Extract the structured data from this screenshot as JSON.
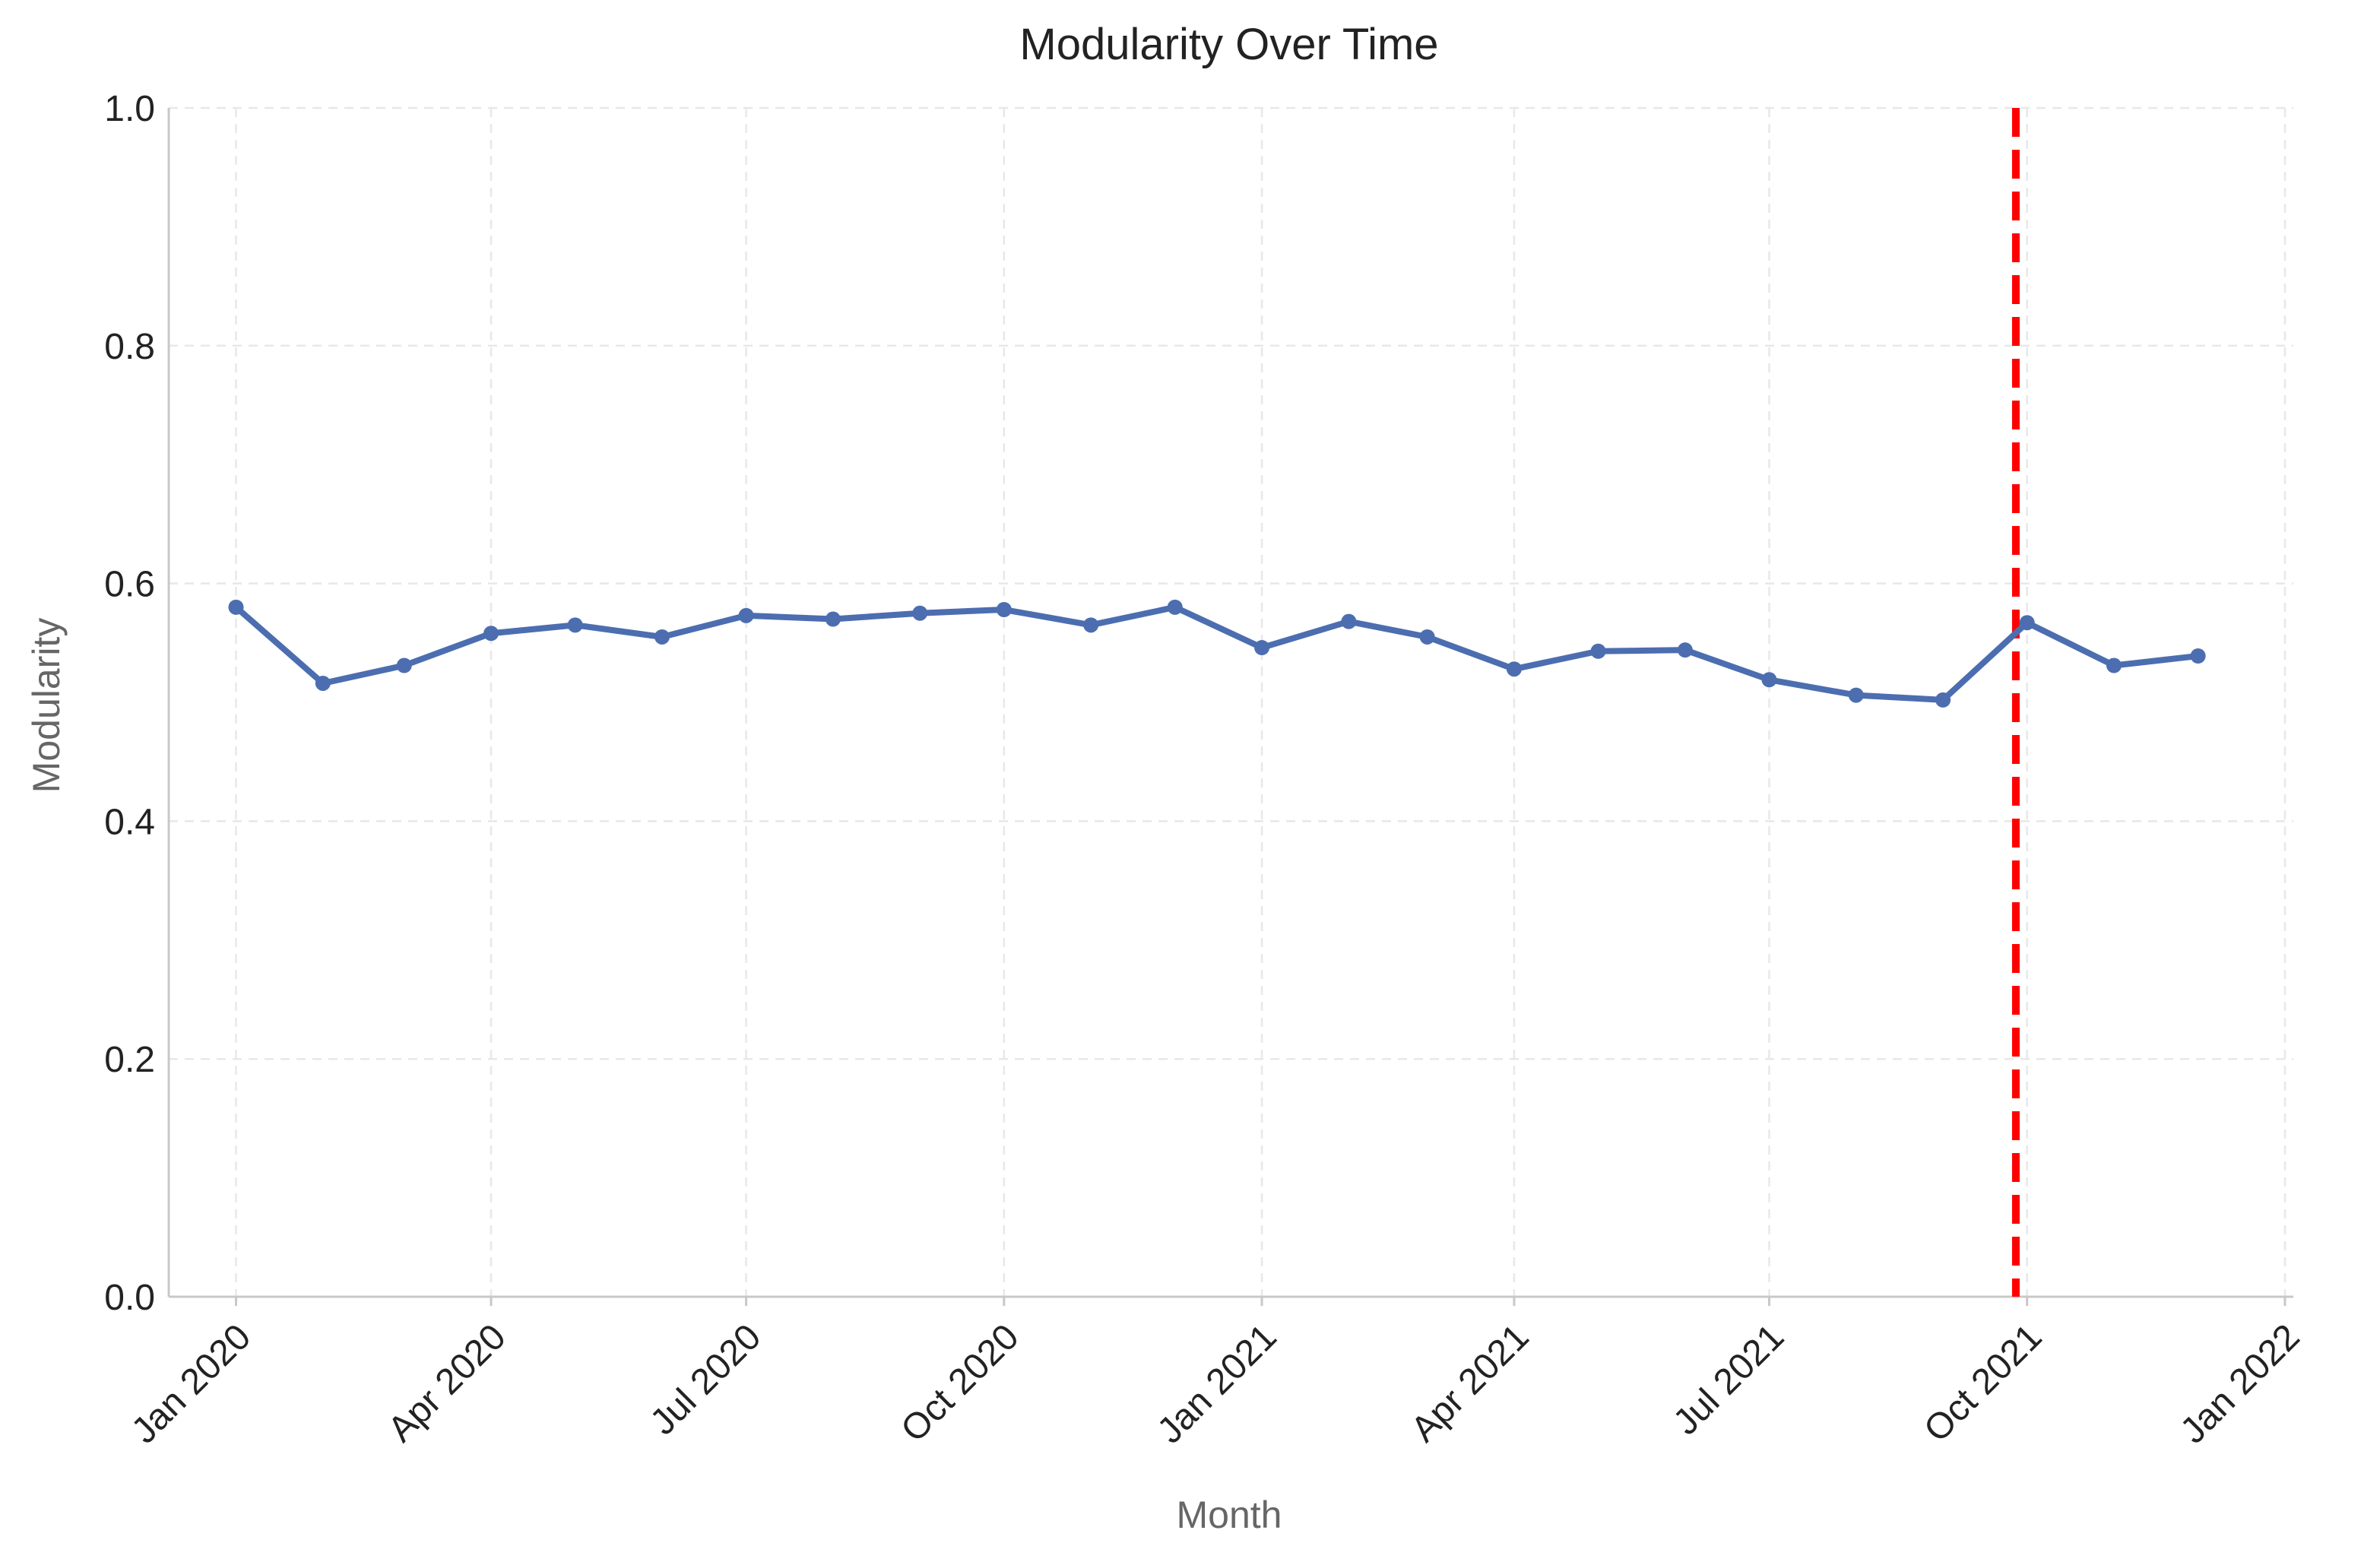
{
  "chart_data": {
    "type": "line",
    "title": "Modularity Over Time",
    "xlabel": "Month",
    "ylabel": "Modularity",
    "ylim": [
      0,
      1
    ],
    "xlim": [
      "2019-12-08",
      "2022-01-04"
    ],
    "x_scale": "date",
    "y_ticks": [
      "0.0",
      "0.2",
      "0.4",
      "0.6",
      "0.8",
      "1.0"
    ],
    "x_ticks": [
      {
        "date": "2020-01-01",
        "label": "Jan 2020"
      },
      {
        "date": "2020-04-01",
        "label": "Apr 2020"
      },
      {
        "date": "2020-07-01",
        "label": "Jul 2020"
      },
      {
        "date": "2020-10-01",
        "label": "Oct 2020"
      },
      {
        "date": "2021-01-01",
        "label": "Jan 2021"
      },
      {
        "date": "2021-04-01",
        "label": "Apr 2021"
      },
      {
        "date": "2021-07-01",
        "label": "Jul 2021"
      },
      {
        "date": "2021-10-01",
        "label": "Oct 2021"
      },
      {
        "date": "2022-01-01",
        "label": "Jan 2022"
      }
    ],
    "grid": true,
    "grid_style": "dashed",
    "series": [
      {
        "color": "#4c6eb0",
        "marker": "circle",
        "x": [
          "2020-01-01",
          "2020-02-01",
          "2020-03-01",
          "2020-04-01",
          "2020-05-01",
          "2020-06-01",
          "2020-07-01",
          "2020-08-01",
          "2020-09-01",
          "2020-10-01",
          "2020-11-01",
          "2020-12-01",
          "2021-01-01",
          "2021-02-01",
          "2021-03-01",
          "2021-04-01",
          "2021-05-01",
          "2021-06-01",
          "2021-07-01",
          "2021-08-01",
          "2021-09-01",
          "2021-10-01",
          "2021-11-01",
          "2021-12-01"
        ],
        "values": [
          0.58,
          0.516,
          0.531,
          0.558,
          0.565,
          0.555,
          0.573,
          0.57,
          0.575,
          0.578,
          0.565,
          0.58,
          0.546,
          0.568,
          0.555,
          0.528,
          0.543,
          0.544,
          0.519,
          0.506,
          0.502,
          0.567,
          0.531,
          0.539
        ]
      }
    ],
    "annotations": [
      {
        "type": "vline",
        "x": "2021-09-27",
        "color": "#ff0000",
        "style": "dashed"
      }
    ]
  }
}
